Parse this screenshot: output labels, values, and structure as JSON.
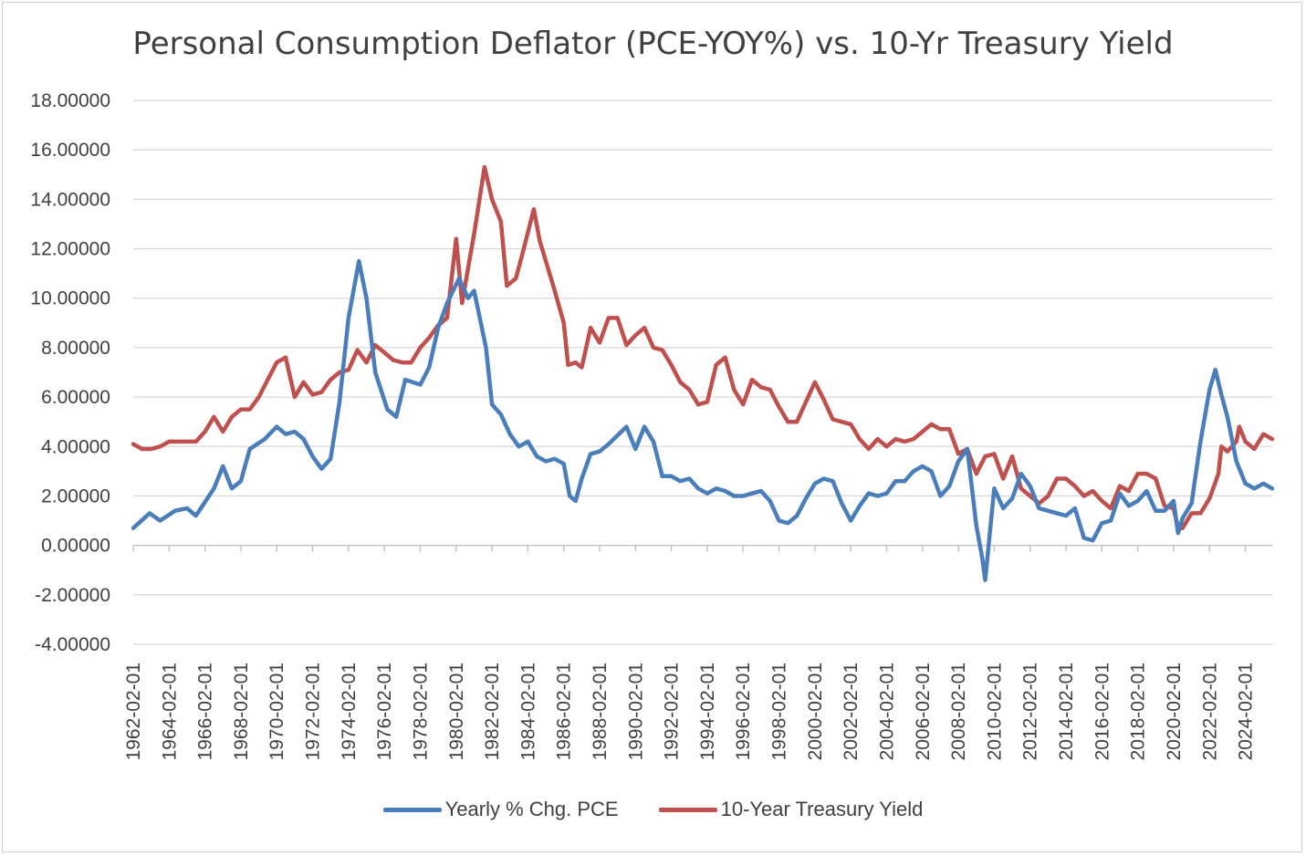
{
  "chart_data": {
    "type": "line",
    "title": "Personal Consumption Deflator (PCE-YOY%) vs. 10-Yr Treasury Yield",
    "xlabel": "",
    "ylabel": "",
    "ylim": [
      -4,
      18
    ],
    "yticks": [
      "18.00000",
      "16.00000",
      "14.00000",
      "12.00000",
      "10.00000",
      "8.00000",
      "6.00000",
      "4.00000",
      "2.00000",
      "0.00000",
      "-2.00000",
      "-4.00000"
    ],
    "xticks": [
      "1962-02-01",
      "1964-02-01",
      "1966-02-01",
      "1968-02-01",
      "1970-02-01",
      "1972-02-01",
      "1974-02-01",
      "1976-02-01",
      "1978-02-01",
      "1980-02-01",
      "1982-02-01",
      "1984-02-01",
      "1986-02-01",
      "1988-02-01",
      "1990-02-01",
      "1992-02-01",
      "1994-02-01",
      "1996-02-01",
      "1998-02-01",
      "2000-02-01",
      "2002-02-01",
      "2004-02-01",
      "2006-02-01",
      "2008-02-01",
      "2010-02-01",
      "2012-02-01",
      "2014-02-01",
      "2016-02-01",
      "2018-02-01",
      "2020-02-01",
      "2022-02-01",
      "2024-02-01"
    ],
    "xlim": [
      "1962-02-01",
      "2025-08-01"
    ],
    "grid": true,
    "legend_position": "bottom",
    "series": [
      {
        "name": "Yearly % Chg. PCE",
        "color": "#4a7ebb",
        "points": [
          [
            "1962-02-01",
            0.7
          ],
          [
            "1963-01-01",
            1.3
          ],
          [
            "1963-08-01",
            1.0
          ],
          [
            "1964-06-01",
            1.4
          ],
          [
            "1965-02-01",
            1.5
          ],
          [
            "1965-08-01",
            1.2
          ],
          [
            "1966-08-01",
            2.3
          ],
          [
            "1967-02-01",
            3.2
          ],
          [
            "1967-08-01",
            2.3
          ],
          [
            "1968-02-01",
            2.6
          ],
          [
            "1968-08-01",
            3.9
          ],
          [
            "1969-06-01",
            4.3
          ],
          [
            "1970-02-01",
            4.8
          ],
          [
            "1970-08-01",
            4.5
          ],
          [
            "1971-02-01",
            4.6
          ],
          [
            "1971-08-01",
            4.3
          ],
          [
            "1972-02-01",
            3.6
          ],
          [
            "1972-08-01",
            3.1
          ],
          [
            "1973-02-01",
            3.5
          ],
          [
            "1973-08-01",
            5.8
          ],
          [
            "1974-02-01",
            9.2
          ],
          [
            "1974-09-01",
            11.5
          ],
          [
            "1975-02-01",
            10.0
          ],
          [
            "1975-08-01",
            7.0
          ],
          [
            "1976-04-01",
            5.5
          ],
          [
            "1976-10-01",
            5.2
          ],
          [
            "1977-04-01",
            6.7
          ],
          [
            "1978-02-01",
            6.5
          ],
          [
            "1978-08-01",
            7.2
          ],
          [
            "1979-02-01",
            8.8
          ],
          [
            "1979-08-01",
            9.8
          ],
          [
            "1980-04-01",
            10.8
          ],
          [
            "1980-10-01",
            10.0
          ],
          [
            "1981-02-01",
            10.3
          ],
          [
            "1981-10-01",
            8.0
          ],
          [
            "1982-02-01",
            5.7
          ],
          [
            "1982-08-01",
            5.3
          ],
          [
            "1983-02-01",
            4.5
          ],
          [
            "1983-08-01",
            4.0
          ],
          [
            "1984-02-01",
            4.2
          ],
          [
            "1984-08-01",
            3.6
          ],
          [
            "1985-02-01",
            3.4
          ],
          [
            "1985-08-01",
            3.5
          ],
          [
            "1986-02-01",
            3.3
          ],
          [
            "1986-06-01",
            2.0
          ],
          [
            "1986-10-01",
            1.8
          ],
          [
            "1987-02-01",
            2.7
          ],
          [
            "1987-08-01",
            3.7
          ],
          [
            "1988-02-01",
            3.8
          ],
          [
            "1988-08-01",
            4.1
          ],
          [
            "1989-08-01",
            4.8
          ],
          [
            "1990-02-01",
            3.9
          ],
          [
            "1990-08-01",
            4.8
          ],
          [
            "1991-02-01",
            4.2
          ],
          [
            "1991-08-01",
            2.8
          ],
          [
            "1992-02-01",
            2.8
          ],
          [
            "1992-08-01",
            2.6
          ],
          [
            "1993-02-01",
            2.7
          ],
          [
            "1993-08-01",
            2.3
          ],
          [
            "1994-02-01",
            2.1
          ],
          [
            "1994-08-01",
            2.3
          ],
          [
            "1995-02-01",
            2.2
          ],
          [
            "1995-08-01",
            2.0
          ],
          [
            "1996-02-01",
            2.0
          ],
          [
            "1996-08-01",
            2.1
          ],
          [
            "1997-02-01",
            2.2
          ],
          [
            "1997-08-01",
            1.8
          ],
          [
            "1998-02-01",
            1.0
          ],
          [
            "1998-08-01",
            0.9
          ],
          [
            "1999-02-01",
            1.2
          ],
          [
            "1999-08-01",
            1.9
          ],
          [
            "2000-02-01",
            2.5
          ],
          [
            "2000-08-01",
            2.7
          ],
          [
            "2001-02-01",
            2.6
          ],
          [
            "2001-08-01",
            1.7
          ],
          [
            "2002-02-01",
            1.0
          ],
          [
            "2002-08-01",
            1.6
          ],
          [
            "2003-02-01",
            2.1
          ],
          [
            "2003-08-01",
            2.0
          ],
          [
            "2004-02-01",
            2.1
          ],
          [
            "2004-08-01",
            2.6
          ],
          [
            "2005-02-01",
            2.6
          ],
          [
            "2005-08-01",
            3.0
          ],
          [
            "2006-02-01",
            3.2
          ],
          [
            "2006-08-01",
            3.0
          ],
          [
            "2007-02-01",
            2.0
          ],
          [
            "2007-08-01",
            2.4
          ],
          [
            "2008-02-01",
            3.4
          ],
          [
            "2008-08-01",
            3.9
          ],
          [
            "2009-02-01",
            0.8
          ],
          [
            "2009-06-01",
            -0.5
          ],
          [
            "2009-08-01",
            -1.4
          ],
          [
            "2010-02-01",
            2.3
          ],
          [
            "2010-08-01",
            1.5
          ],
          [
            "2011-02-01",
            1.9
          ],
          [
            "2011-08-01",
            2.9
          ],
          [
            "2012-02-01",
            2.4
          ],
          [
            "2012-08-01",
            1.5
          ],
          [
            "2013-02-01",
            1.4
          ],
          [
            "2013-08-01",
            1.3
          ],
          [
            "2014-02-01",
            1.2
          ],
          [
            "2014-08-01",
            1.5
          ],
          [
            "2015-02-01",
            0.3
          ],
          [
            "2015-08-01",
            0.2
          ],
          [
            "2016-02-01",
            0.9
          ],
          [
            "2016-08-01",
            1.0
          ],
          [
            "2017-02-01",
            2.1
          ],
          [
            "2017-08-01",
            1.6
          ],
          [
            "2018-02-01",
            1.8
          ],
          [
            "2018-08-01",
            2.2
          ],
          [
            "2019-02-01",
            1.4
          ],
          [
            "2019-08-01",
            1.4
          ],
          [
            "2020-02-01",
            1.8
          ],
          [
            "2020-05-01",
            0.5
          ],
          [
            "2020-08-01",
            1.1
          ],
          [
            "2021-02-01",
            1.7
          ],
          [
            "2021-08-01",
            4.2
          ],
          [
            "2022-02-01",
            6.3
          ],
          [
            "2022-06-01",
            7.1
          ],
          [
            "2022-10-01",
            6.1
          ],
          [
            "2023-02-01",
            5.2
          ],
          [
            "2023-08-01",
            3.4
          ],
          [
            "2024-02-01",
            2.5
          ],
          [
            "2024-08-01",
            2.3
          ],
          [
            "2025-02-01",
            2.5
          ],
          [
            "2025-08-01",
            2.3
          ]
        ]
      },
      {
        "name": "10-Year Treasury Yield",
        "color": "#c0504d",
        "points": [
          [
            "1962-02-01",
            4.1
          ],
          [
            "1962-08-01",
            3.9
          ],
          [
            "1963-02-01",
            3.9
          ],
          [
            "1963-08-01",
            4.0
          ],
          [
            "1964-02-01",
            4.2
          ],
          [
            "1964-08-01",
            4.2
          ],
          [
            "1965-02-01",
            4.2
          ],
          [
            "1965-08-01",
            4.2
          ],
          [
            "1966-02-01",
            4.6
          ],
          [
            "1966-08-01",
            5.2
          ],
          [
            "1967-02-01",
            4.6
          ],
          [
            "1967-08-01",
            5.2
          ],
          [
            "1968-02-01",
            5.5
          ],
          [
            "1968-08-01",
            5.5
          ],
          [
            "1969-02-01",
            6.0
          ],
          [
            "1969-08-01",
            6.7
          ],
          [
            "1970-02-01",
            7.4
          ],
          [
            "1970-08-01",
            7.6
          ],
          [
            "1971-02-01",
            6.0
          ],
          [
            "1971-08-01",
            6.6
          ],
          [
            "1972-02-01",
            6.1
          ],
          [
            "1972-08-01",
            6.2
          ],
          [
            "1973-02-01",
            6.7
          ],
          [
            "1973-08-01",
            7.0
          ],
          [
            "1974-02-01",
            7.1
          ],
          [
            "1974-08-01",
            7.9
          ],
          [
            "1975-02-01",
            7.4
          ],
          [
            "1975-08-01",
            8.1
          ],
          [
            "1976-02-01",
            7.8
          ],
          [
            "1976-08-01",
            7.5
          ],
          [
            "1977-02-01",
            7.4
          ],
          [
            "1977-08-01",
            7.4
          ],
          [
            "1978-02-01",
            8.0
          ],
          [
            "1978-08-01",
            8.4
          ],
          [
            "1979-02-01",
            8.9
          ],
          [
            "1979-08-01",
            9.2
          ],
          [
            "1980-02-01",
            12.4
          ],
          [
            "1980-06-01",
            9.8
          ],
          [
            "1980-10-01",
            11.2
          ],
          [
            "1981-02-01",
            12.6
          ],
          [
            "1981-09-01",
            15.3
          ],
          [
            "1982-02-01",
            14.0
          ],
          [
            "1982-08-01",
            13.1
          ],
          [
            "1982-12-01",
            10.5
          ],
          [
            "1983-06-01",
            10.8
          ],
          [
            "1983-10-01",
            11.7
          ],
          [
            "1984-06-01",
            13.6
          ],
          [
            "1984-10-01",
            12.3
          ],
          [
            "1985-02-01",
            11.5
          ],
          [
            "1985-08-01",
            10.3
          ],
          [
            "1986-02-01",
            9.0
          ],
          [
            "1986-05-01",
            7.3
          ],
          [
            "1986-10-01",
            7.4
          ],
          [
            "1987-02-01",
            7.2
          ],
          [
            "1987-08-01",
            8.8
          ],
          [
            "1988-02-01",
            8.2
          ],
          [
            "1988-08-01",
            9.2
          ],
          [
            "1989-02-01",
            9.2
          ],
          [
            "1989-08-01",
            8.1
          ],
          [
            "1990-02-01",
            8.5
          ],
          [
            "1990-08-01",
            8.8
          ],
          [
            "1991-02-01",
            8.0
          ],
          [
            "1991-08-01",
            7.9
          ],
          [
            "1992-02-01",
            7.3
          ],
          [
            "1992-08-01",
            6.6
          ],
          [
            "1993-02-01",
            6.3
          ],
          [
            "1993-08-01",
            5.7
          ],
          [
            "1994-02-01",
            5.8
          ],
          [
            "1994-08-01",
            7.3
          ],
          [
            "1995-02-01",
            7.6
          ],
          [
            "1995-08-01",
            6.3
          ],
          [
            "1996-02-01",
            5.7
          ],
          [
            "1996-08-01",
            6.7
          ],
          [
            "1997-02-01",
            6.4
          ],
          [
            "1997-08-01",
            6.3
          ],
          [
            "1998-02-01",
            5.6
          ],
          [
            "1998-08-01",
            5.0
          ],
          [
            "1999-02-01",
            5.0
          ],
          [
            "1999-08-01",
            5.8
          ],
          [
            "2000-02-01",
            6.6
          ],
          [
            "2000-08-01",
            5.9
          ],
          [
            "2001-02-01",
            5.1
          ],
          [
            "2001-08-01",
            5.0
          ],
          [
            "2002-02-01",
            4.9
          ],
          [
            "2002-08-01",
            4.3
          ],
          [
            "2003-02-01",
            3.9
          ],
          [
            "2003-08-01",
            4.3
          ],
          [
            "2004-02-01",
            4.0
          ],
          [
            "2004-08-01",
            4.3
          ],
          [
            "2005-02-01",
            4.2
          ],
          [
            "2005-08-01",
            4.3
          ],
          [
            "2006-02-01",
            4.6
          ],
          [
            "2006-08-01",
            4.9
          ],
          [
            "2007-02-01",
            4.7
          ],
          [
            "2007-08-01",
            4.7
          ],
          [
            "2008-02-01",
            3.7
          ],
          [
            "2008-08-01",
            3.9
          ],
          [
            "2009-02-01",
            2.9
          ],
          [
            "2009-08-01",
            3.6
          ],
          [
            "2010-02-01",
            3.7
          ],
          [
            "2010-08-01",
            2.7
          ],
          [
            "2011-02-01",
            3.6
          ],
          [
            "2011-08-01",
            2.3
          ],
          [
            "2012-02-01",
            2.0
          ],
          [
            "2012-08-01",
            1.7
          ],
          [
            "2013-02-01",
            2.0
          ],
          [
            "2013-08-01",
            2.7
          ],
          [
            "2014-02-01",
            2.7
          ],
          [
            "2014-08-01",
            2.4
          ],
          [
            "2015-02-01",
            2.0
          ],
          [
            "2015-08-01",
            2.2
          ],
          [
            "2016-02-01",
            1.8
          ],
          [
            "2016-08-01",
            1.5
          ],
          [
            "2017-02-01",
            2.4
          ],
          [
            "2017-08-01",
            2.2
          ],
          [
            "2018-02-01",
            2.9
          ],
          [
            "2018-08-01",
            2.9
          ],
          [
            "2019-02-01",
            2.7
          ],
          [
            "2019-08-01",
            1.6
          ],
          [
            "2020-02-01",
            1.5
          ],
          [
            "2020-05-01",
            0.7
          ],
          [
            "2020-08-01",
            0.7
          ],
          [
            "2021-02-01",
            1.3
          ],
          [
            "2021-08-01",
            1.3
          ],
          [
            "2022-02-01",
            1.9
          ],
          [
            "2022-08-01",
            2.9
          ],
          [
            "2022-10-01",
            4.0
          ],
          [
            "2023-02-01",
            3.8
          ],
          [
            "2023-08-01",
            4.2
          ],
          [
            "2023-10-01",
            4.8
          ],
          [
            "2024-02-01",
            4.2
          ],
          [
            "2024-08-01",
            3.9
          ],
          [
            "2024-10-01",
            4.1
          ],
          [
            "2025-02-01",
            4.5
          ],
          [
            "2025-08-01",
            4.3
          ]
        ]
      }
    ]
  }
}
